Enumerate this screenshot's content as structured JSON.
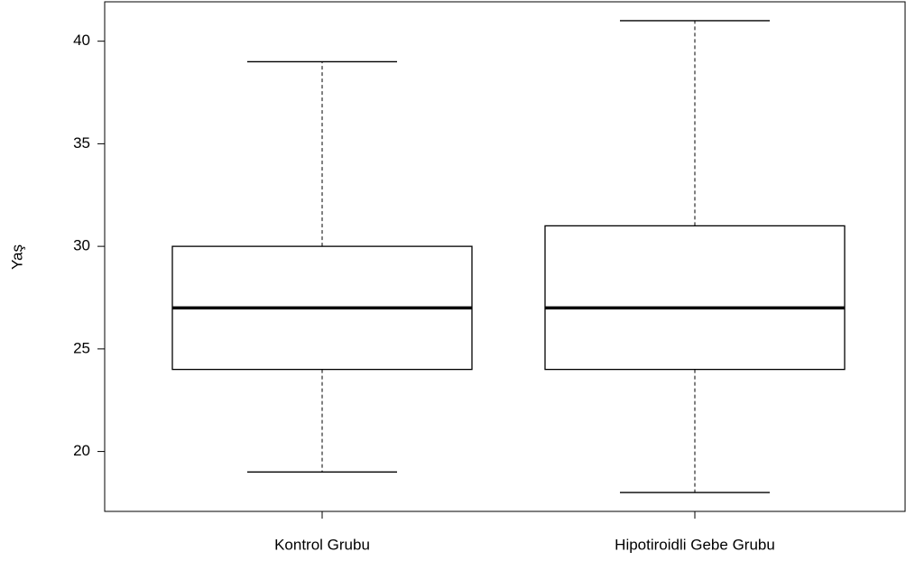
{
  "chart_data": {
    "type": "box",
    "y_label": "Yaş",
    "categories": [
      "Kontrol Grubu",
      "Hipotiroidli Gebe Grubu"
    ],
    "min": [
      19,
      18
    ],
    "q1": [
      24,
      24
    ],
    "median": [
      27,
      27
    ],
    "q3": [
      30,
      31
    ],
    "max": [
      39,
      41
    ],
    "ylim": [
      17.08,
      41.92
    ],
    "yticks": [
      20,
      25,
      30,
      35,
      40
    ]
  }
}
